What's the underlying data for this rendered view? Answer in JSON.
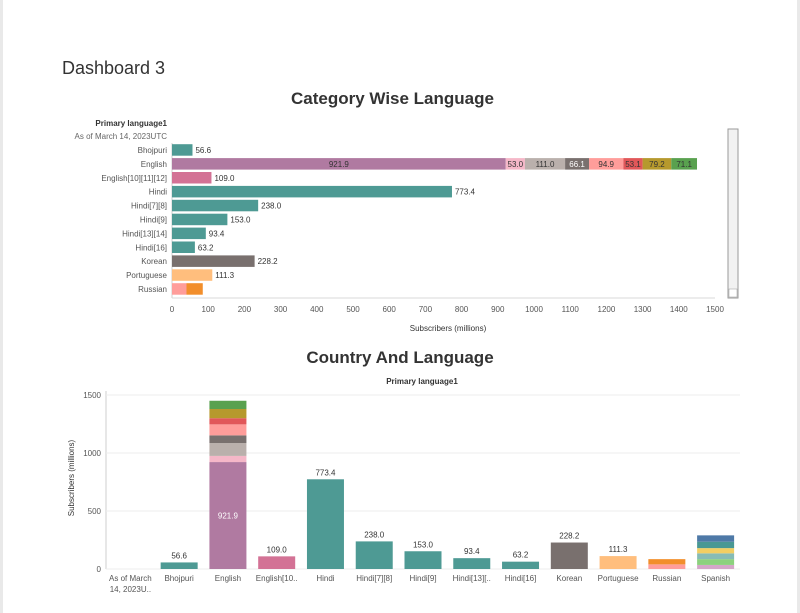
{
  "page": {
    "title": "Dashboard 3"
  },
  "chart_data": [
    {
      "type": "bar",
      "orientation": "horizontal",
      "stacked": true,
      "title": "Category Wise  Language",
      "row_header": "Primary language1",
      "row_subheader": "As of March 14, 2023UTC",
      "xlabel": "Subscribers (millions)",
      "xlim": [
        0,
        1500
      ],
      "xticks": [
        0,
        100,
        200,
        300,
        400,
        500,
        600,
        700,
        800,
        900,
        1000,
        1100,
        1200,
        1300,
        1400,
        1500
      ],
      "categories": [
        "Bhojpuri",
        "English",
        "English[10][11][12]",
        "Hindi",
        "Hindi[7][8]",
        "Hindi[9]",
        "Hindi[13][14]",
        "Hindi[16]",
        "Korean",
        "Portuguese",
        "Russian"
      ],
      "rows": [
        {
          "segments": [
            {
              "value": 56.6,
              "color": "#4e9a94",
              "label": "56.6"
            }
          ]
        },
        {
          "segments": [
            {
              "value": 921.9,
              "color": "#b07aa1",
              "label": "921.9"
            },
            {
              "value": 53.0,
              "color": "#f5b7c8",
              "label": "53.0"
            },
            {
              "value": 111.0,
              "color": "#bab0ac",
              "label": "111.0"
            },
            {
              "value": 66.1,
              "color": "#79706e",
              "label": "66.1"
            },
            {
              "value": 94.9,
              "color": "#ff9d9a",
              "label": "94.9"
            },
            {
              "value": 53.1,
              "color": "#e15759",
              "label": "53.1"
            },
            {
              "value": 79.2,
              "color": "#b6992d",
              "label": "79.2"
            },
            {
              "value": 71.1,
              "color": "#59a14f",
              "label": "71.1"
            }
          ]
        },
        {
          "segments": [
            {
              "value": 109.0,
              "color": "#d37295",
              "label": "109.0"
            }
          ]
        },
        {
          "segments": [
            {
              "value": 773.4,
              "color": "#4e9a94",
              "label": "773.4"
            }
          ]
        },
        {
          "segments": [
            {
              "value": 238.0,
              "color": "#4e9a94",
              "label": "238.0"
            }
          ]
        },
        {
          "segments": [
            {
              "value": 153.0,
              "color": "#4e9a94",
              "label": "153.0"
            }
          ]
        },
        {
          "segments": [
            {
              "value": 93.4,
              "color": "#4e9a94",
              "label": "93.4"
            }
          ]
        },
        {
          "segments": [
            {
              "value": 63.2,
              "color": "#4e9a94",
              "label": "63.2"
            }
          ]
        },
        {
          "segments": [
            {
              "value": 228.2,
              "color": "#79706e",
              "label": "228.2"
            }
          ]
        },
        {
          "segments": [
            {
              "value": 111.3,
              "color": "#ffbe7d",
              "label": "111.3"
            }
          ]
        },
        {
          "segments": [
            {
              "value": 40,
              "color": "#ff9d9a",
              "label": ""
            },
            {
              "value": 45,
              "color": "#f28e2b",
              "label": ""
            }
          ]
        }
      ]
    },
    {
      "type": "bar",
      "orientation": "vertical",
      "stacked": true,
      "title": "Country And Language",
      "top_label": "Primary language1",
      "ylabel": "Subscribers (millions)",
      "ylim": [
        0,
        1500
      ],
      "yticks": [
        0,
        500,
        1000,
        1500
      ],
      "categories": [
        "As of March 14, 2023U..",
        "Bhojpuri",
        "English",
        "English[10..",
        "Hindi",
        "Hindi[7][8]",
        "Hindi[9]",
        "Hindi[13][..",
        "Hindi[16]",
        "Korean",
        "Portuguese",
        "Russian",
        "Spanish"
      ],
      "bars": [
        {
          "segments": []
        },
        {
          "segments": [
            {
              "value": 56.6,
              "color": "#4e9a94"
            }
          ],
          "label": "56.6"
        },
        {
          "segments": [
            {
              "value": 921.9,
              "color": "#b07aa1",
              "label": "921.9"
            },
            {
              "value": 53.0,
              "color": "#f5b7c8"
            },
            {
              "value": 111.0,
              "color": "#bab0ac"
            },
            {
              "value": 66.1,
              "color": "#79706e"
            },
            {
              "value": 94.9,
              "color": "#ff9d9a"
            },
            {
              "value": 53.1,
              "color": "#e15759"
            },
            {
              "value": 79.2,
              "color": "#b6992d"
            },
            {
              "value": 71.1,
              "color": "#59a14f"
            }
          ]
        },
        {
          "segments": [
            {
              "value": 109.0,
              "color": "#d37295"
            }
          ],
          "label": "109.0"
        },
        {
          "segments": [
            {
              "value": 773.4,
              "color": "#4e9a94"
            }
          ],
          "label": "773.4"
        },
        {
          "segments": [
            {
              "value": 238.0,
              "color": "#4e9a94"
            }
          ],
          "label": "238.0"
        },
        {
          "segments": [
            {
              "value": 153.0,
              "color": "#4e9a94"
            }
          ],
          "label": "153.0"
        },
        {
          "segments": [
            {
              "value": 93.4,
              "color": "#4e9a94"
            }
          ],
          "label": "93.4"
        },
        {
          "segments": [
            {
              "value": 63.2,
              "color": "#4e9a94"
            }
          ],
          "label": "63.2"
        },
        {
          "segments": [
            {
              "value": 228.2,
              "color": "#79706e"
            }
          ],
          "label": "228.2"
        },
        {
          "segments": [
            {
              "value": 111.3,
              "color": "#ffbe7d"
            }
          ],
          "label": "111.3"
        },
        {
          "segments": [
            {
              "value": 40,
              "color": "#ff9d9a"
            },
            {
              "value": 45,
              "color": "#f28e2b"
            }
          ]
        },
        {
          "segments": [
            {
              "value": 35,
              "color": "#d4a6c8"
            },
            {
              "value": 50,
              "color": "#8cd17d"
            },
            {
              "value": 50,
              "color": "#86bcb6"
            },
            {
              "value": 45,
              "color": "#f1ce63"
            },
            {
              "value": 55,
              "color": "#499894"
            },
            {
              "value": 55,
              "color": "#4e79a7"
            }
          ]
        }
      ]
    }
  ]
}
